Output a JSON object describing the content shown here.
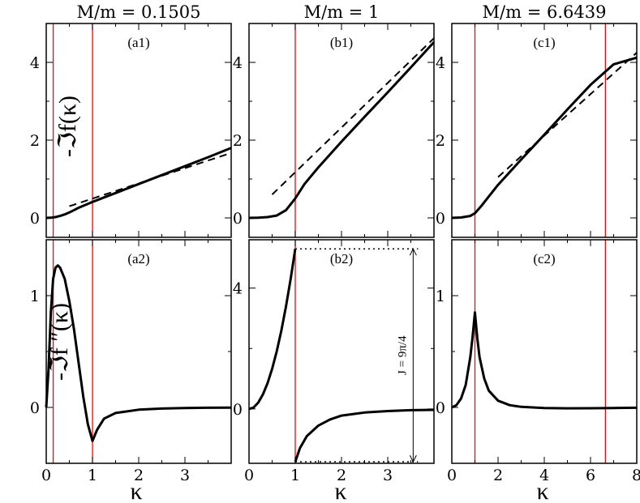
{
  "figure": {
    "ylabel_top": "-ℑf(κ)",
    "ylabel_bottom": "-ℑf ″(κ)",
    "xlabel": "κ",
    "marker_color": "#ff0000"
  },
  "chart_data": [
    {
      "type": "line",
      "panel": "a1",
      "title": "M/m = 0.1505",
      "label": "(a1)",
      "xlim": [
        0,
        4
      ],
      "ylim": [
        -0.5,
        5
      ],
      "yticks": [
        0,
        2,
        4
      ],
      "ytick_labels": [
        "0",
        "2",
        "4"
      ],
      "vlines": [
        0.1505,
        1
      ],
      "series": [
        {
          "name": "solid",
          "style": "solid",
          "x": [
            0,
            0.1,
            0.2,
            0.3,
            0.4,
            0.5,
            0.6,
            0.7,
            0.8,
            0.9,
            1.0,
            1.5,
            2.0,
            2.5,
            3.0,
            3.5,
            4.0
          ],
          "y": [
            0,
            0.005,
            0.02,
            0.05,
            0.09,
            0.14,
            0.2,
            0.26,
            0.31,
            0.36,
            0.41,
            0.64,
            0.87,
            1.1,
            1.33,
            1.56,
            1.8
          ]
        },
        {
          "name": "dashed",
          "style": "dashed",
          "x": [
            0.5,
            4.0
          ],
          "y": [
            0.3,
            1.67
          ]
        }
      ]
    },
    {
      "type": "line",
      "panel": "b1",
      "title": "M/m = 1",
      "label": "(b1)",
      "xlim": [
        0,
        4
      ],
      "ylim": [
        -0.5,
        5
      ],
      "yticks": [
        0,
        2,
        4
      ],
      "ytick_labels": [
        "0",
        "2",
        "4"
      ],
      "vlines": [
        1
      ],
      "series": [
        {
          "name": "solid",
          "style": "solid",
          "x": [
            0,
            0.2,
            0.4,
            0.6,
            0.8,
            1.0,
            1.2,
            1.5,
            2.0,
            2.5,
            3.0,
            3.5,
            4.0
          ],
          "y": [
            0,
            0.005,
            0.02,
            0.06,
            0.2,
            0.5,
            0.87,
            1.3,
            1.96,
            2.6,
            3.23,
            3.87,
            4.52
          ]
        },
        {
          "name": "dashed",
          "style": "dashed",
          "x": [
            0.5,
            4.0
          ],
          "y": [
            0.6,
            4.62
          ]
        }
      ]
    },
    {
      "type": "line",
      "panel": "c1",
      "title": "M/m = 6.6439",
      "label": "(c1)",
      "xlim": [
        0,
        8
      ],
      "ylim": [
        -0.5,
        5
      ],
      "yticks": [
        0,
        2,
        4
      ],
      "ytick_labels": [
        "0",
        "2",
        "4"
      ],
      "vlines": [
        1,
        6.6439
      ],
      "series": [
        {
          "name": "solid",
          "style": "solid",
          "x": [
            0,
            0.4,
            0.8,
            1.0,
            1.3,
            1.6,
            2.0,
            3.0,
            4.0,
            5.0,
            6.0,
            7.0,
            8.0
          ],
          "y": [
            0,
            0.01,
            0.05,
            0.12,
            0.32,
            0.55,
            0.85,
            1.5,
            2.14,
            2.79,
            3.42,
            3.95,
            4.12
          ]
        },
        {
          "name": "dashed",
          "style": "dashed",
          "x": [
            2.0,
            8.0
          ],
          "y": [
            1.05,
            4.25
          ]
        }
      ]
    },
    {
      "type": "line",
      "panel": "a2",
      "label": "(a2)",
      "xlim": [
        0,
        4
      ],
      "ylim": [
        -0.5,
        1.5
      ],
      "yticks": [
        0,
        1
      ],
      "ytick_labels": [
        "0",
        "1"
      ],
      "xticks": [
        0,
        1,
        2,
        3
      ],
      "xtick_labels": [
        "0",
        "1",
        "2",
        "3"
      ],
      "vlines": [
        0.1505,
        1
      ],
      "series": [
        {
          "name": "solid",
          "style": "solid",
          "x": [
            0,
            0.05,
            0.1,
            0.15,
            0.2,
            0.25,
            0.3,
            0.4,
            0.5,
            0.6,
            0.7,
            0.8,
            0.9,
            1.0,
            1.1,
            1.25,
            1.5,
            2.0,
            2.5,
            3.0,
            3.5,
            4.0
          ],
          "y": [
            0,
            0.35,
            0.85,
            1.15,
            1.25,
            1.27,
            1.25,
            1.15,
            0.95,
            0.7,
            0.4,
            0.1,
            -0.15,
            -0.3,
            -0.2,
            -0.1,
            -0.05,
            -0.02,
            -0.01,
            -0.005,
            -0.003,
            -0.002
          ]
        }
      ]
    },
    {
      "type": "line",
      "panel": "b2",
      "label": "(b2)",
      "xlim": [
        0,
        4
      ],
      "ylim": [
        -1.8,
        5.6
      ],
      "yticks": [
        0,
        4
      ],
      "ytick_labels": [
        "0",
        "4"
      ],
      "xticks": [
        0,
        1,
        2,
        3
      ],
      "xtick_labels": [
        "0",
        "1",
        "2",
        "3"
      ],
      "vlines": [
        1
      ],
      "jump_label": "J = 9π/4",
      "jump_levels": [
        5.3,
        -1.75
      ],
      "jump_x": 3.55,
      "series": [
        {
          "name": "solid-left",
          "style": "solid",
          "x": [
            0,
            0.1,
            0.2,
            0.3,
            0.4,
            0.5,
            0.6,
            0.7,
            0.8,
            0.9,
            1.0
          ],
          "y": [
            0,
            0.05,
            0.21,
            0.48,
            0.85,
            1.33,
            1.91,
            2.6,
            3.4,
            4.3,
            5.3
          ]
        },
        {
          "name": "solid-right",
          "style": "solid",
          "x": [
            1.0,
            1.1,
            1.25,
            1.5,
            1.75,
            2.0,
            2.5,
            3.0,
            3.5,
            4.0
          ],
          "y": [
            -1.75,
            -1.3,
            -0.9,
            -0.55,
            -0.35,
            -0.22,
            -0.12,
            -0.07,
            -0.04,
            -0.03
          ]
        }
      ]
    },
    {
      "type": "line",
      "panel": "c2",
      "label": "(c2)",
      "xlim": [
        0,
        8
      ],
      "ylim": [
        -0.5,
        1.5
      ],
      "yticks": [
        0,
        1
      ],
      "ytick_labels": [
        "0",
        "1"
      ],
      "xticks": [
        0,
        2,
        4,
        6,
        8
      ],
      "xtick_labels": [
        "0",
        "2",
        "4",
        "6",
        "8"
      ],
      "vlines": [
        1,
        6.6439
      ],
      "series": [
        {
          "name": "solid",
          "style": "solid",
          "x": [
            0,
            0.2,
            0.4,
            0.6,
            0.8,
            0.9,
            1.0,
            1.1,
            1.2,
            1.4,
            1.6,
            2.0,
            2.5,
            3.0,
            4.0,
            5.0,
            6.0,
            7.0,
            8.0
          ],
          "y": [
            0,
            0.02,
            0.08,
            0.2,
            0.45,
            0.63,
            0.85,
            0.62,
            0.45,
            0.26,
            0.15,
            0.06,
            0.02,
            0.005,
            -0.005,
            -0.008,
            -0.007,
            -0.005,
            -0.003
          ]
        }
      ]
    }
  ]
}
